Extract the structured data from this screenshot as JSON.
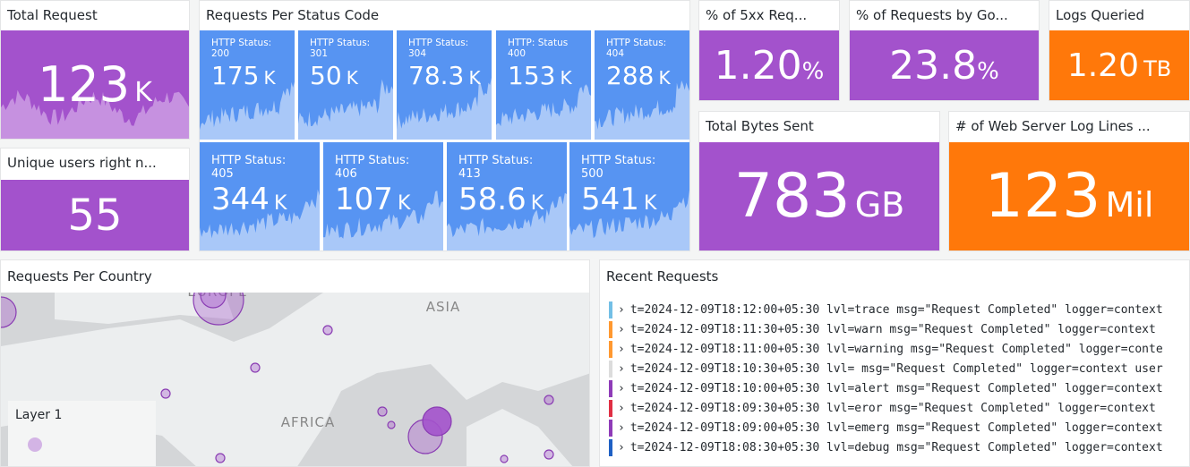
{
  "stats": [
    {
      "title": "Total Request",
      "value": "123",
      "unit": "K"
    },
    {
      "title": "Unique users right n...",
      "value": "55"
    },
    {
      "title": "% of 5xx Req...",
      "value": "1.20",
      "unit": "%"
    },
    {
      "title": "% of Requests by Go...",
      "value": "23.8",
      "unit": "%"
    },
    {
      "title": "Logs Queried",
      "value": "1.20",
      "unit": "TB"
    },
    {
      "title": "Total Bytes Sent",
      "value": "783",
      "unit": "GB"
    },
    {
      "title": "# of Web Server Log Lines ...",
      "value": "123",
      "unit": "Mil"
    }
  ],
  "status_code": {
    "title": "Requests Per Status Code",
    "tiles": [
      {
        "label": "HTTP Status: 200",
        "value": "175",
        "unit": "K"
      },
      {
        "label": "HTTP Status: 301",
        "value": "50",
        "unit": "K"
      },
      {
        "label": "HTTP Status: 304",
        "value": "78.3",
        "unit": "K"
      },
      {
        "label": "HTTP: Status 400",
        "value": "153",
        "unit": "K"
      },
      {
        "label": "HTTP Status: 404",
        "value": "288",
        "unit": "K"
      },
      {
        "label": "HTTP Status: 405",
        "value": "344",
        "unit": "K"
      },
      {
        "label": "HTTP Status: 406",
        "value": "107",
        "unit": "K"
      },
      {
        "label": "HTTP Status: 413",
        "value": "58.6",
        "unit": "K"
      },
      {
        "label": "HTTP Status: 500",
        "value": "541",
        "unit": "K"
      }
    ]
  },
  "map": {
    "title": "Requests Per Country",
    "regions": [
      "EUROPE",
      "ASIA",
      "AFRICA"
    ],
    "legend": "Layer 1"
  },
  "logs": {
    "title": "Recent Requests",
    "lines": [
      "t=2024-12-09T18:12:00+05:30 lvl=trace msg=\"Request Completed\" logger=context",
      "t=2024-12-09T18:11:30+05:30 lvl=warn msg=\"Request Completed\" logger=context",
      "t=2024-12-09T18:11:00+05:30 lvl=warning msg=\"Request Completed\" logger=conte",
      "t=2024-12-09T18:10:30+05:30 lvl= msg=\"Request Completed\" logger=context user",
      "t=2024-12-09T18:10:00+05:30 lvl=alert msg=\"Request Completed\" logger=context",
      "t=2024-12-09T18:09:30+05:30 lvl=eror msg=\"Request Completed\" logger=context",
      "t=2024-12-09T18:09:00+05:30 lvl=emerg msg=\"Request Completed\" logger=context",
      "t=2024-12-09T18:08:30+05:30 lvl=debug msg=\"Request Completed\" logger=context"
    ]
  }
}
